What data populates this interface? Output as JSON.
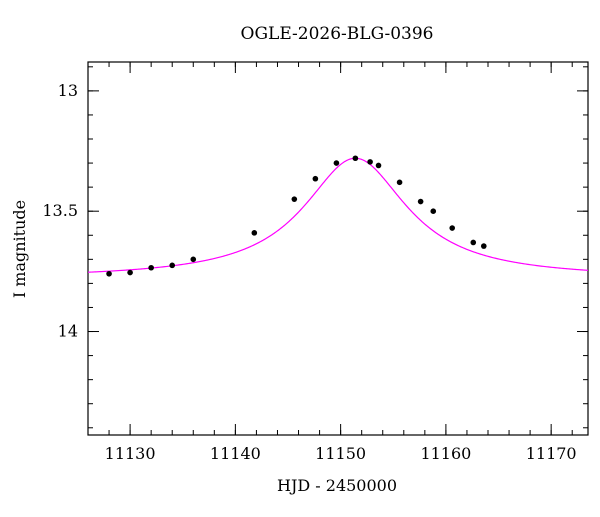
{
  "chart_data": {
    "type": "scatter",
    "title": "OGLE-2026-BLG-0396",
    "xlabel": "HJD - 2450000",
    "ylabel": "I magnitude",
    "xlim": [
      11126,
      11173.5
    ],
    "ylim": [
      14.43,
      12.88
    ],
    "y_inverted": true,
    "x_ticks": [
      11130,
      11140,
      11150,
      11160,
      11170
    ],
    "x_tick_labels": [
      "11130",
      "11140",
      "11150",
      "11160",
      "11170"
    ],
    "y_ticks": [
      13,
      13.5,
      14
    ],
    "y_tick_labels": [
      "13",
      "13.5",
      "14"
    ],
    "x_minor_step": 2,
    "y_minor_step": 0.1,
    "grid": false,
    "series": [
      {
        "kind": "points",
        "color": "#000000",
        "x": [
          11128.0,
          11130.0,
          11132.0,
          11134.0,
          11136.0,
          11141.8,
          11145.6,
          11147.6,
          11149.6,
          11151.4,
          11152.8,
          11153.6,
          11155.6,
          11157.6,
          11158.8,
          11160.6,
          11162.6,
          11163.6
        ],
        "y": [
          13.76,
          13.755,
          13.735,
          13.725,
          13.7,
          13.59,
          13.45,
          13.365,
          13.3,
          13.28,
          13.295,
          13.31,
          13.38,
          13.46,
          13.5,
          13.57,
          13.63,
          13.645
        ]
      },
      {
        "kind": "model",
        "color": "#ff00ff",
        "peak_time": 11151.4,
        "baseline_mag": 13.78,
        "peak_mag": 13.28,
        "half_width": 6.0
      }
    ]
  }
}
